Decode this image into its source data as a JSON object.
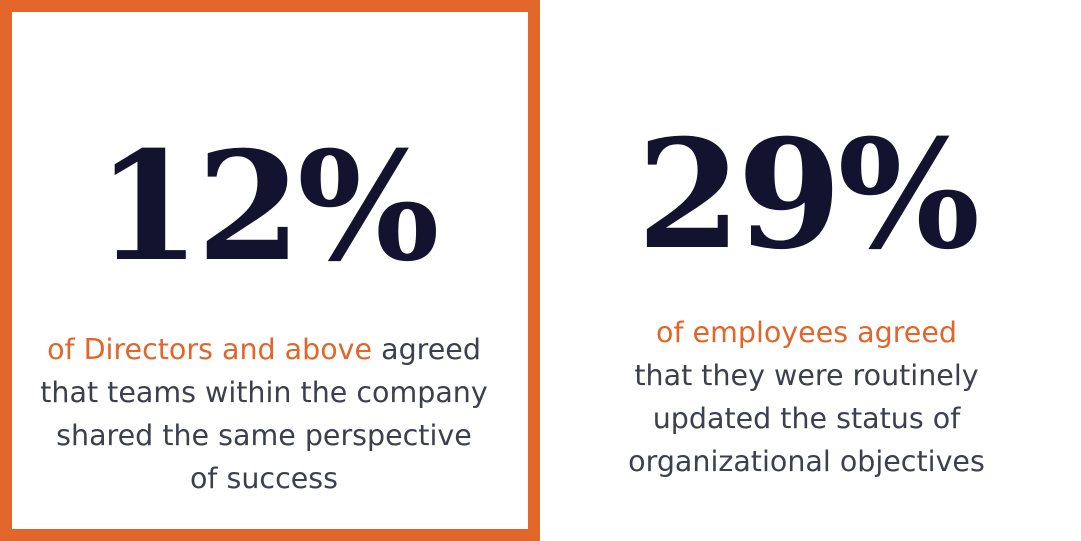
{
  "colors": {
    "accent": "#E2662A",
    "number": "#13132F",
    "text": "#3C3F4E",
    "background": "#FFFFFF"
  },
  "stats": [
    {
      "value": "12%",
      "highlight": "of Directors and above",
      "line1_rest": " agreed",
      "line2": "that teams within the company",
      "line3": "shared the same perspective",
      "line4": "of success"
    },
    {
      "value": "29%",
      "highlight": "of employees agreed",
      "line2": "that they were routinely",
      "line3": "updated the status of",
      "line4": "organizational objectives"
    }
  ]
}
